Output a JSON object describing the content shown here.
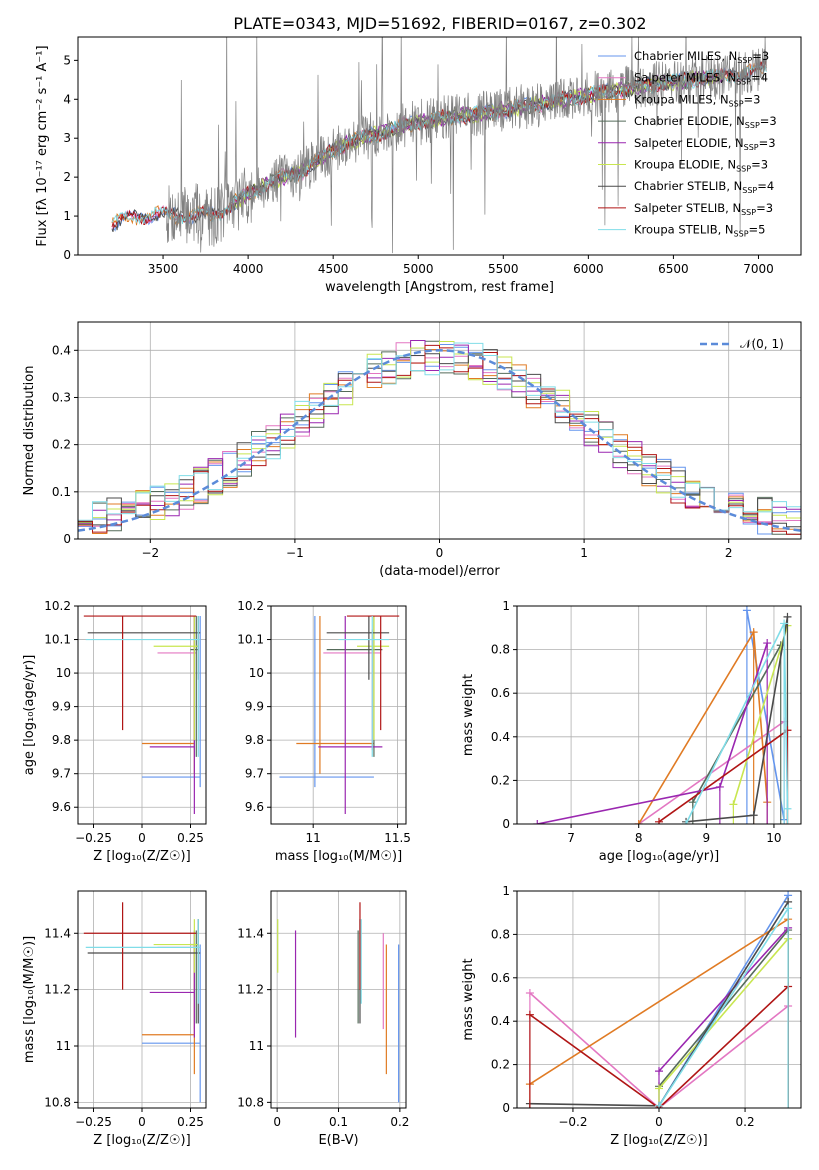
{
  "figure": {
    "title": "PLATE=0343, MJD=51692, FIBERID=0167, z=0.302"
  },
  "colors": {
    "Chabrier MILES": "#6495ed",
    "Salpeter MILES": "#e377c2",
    "Kroupa MILES": "#e07b24",
    "Chabrier ELODIE": "#556b5a",
    "Salpeter ELODIE": "#9a27b0",
    "Kroupa ELODIE": "#c8e650",
    "Chabrier STELIB": "#4a4a4a",
    "Salpeter STELIB": "#b01515",
    "Kroupa STELIB": "#80dde8",
    "data": "#808080",
    "normal": "#5b8bd9",
    "grid": "#b0b0b0"
  },
  "chart_data": [
    {
      "id": "spectrum",
      "type": "line",
      "xlabel": "wavelength [Angstrom, rest frame]",
      "ylabel": "Flux [fλ 10⁻¹⁷ erg cm⁻² s⁻¹ A⁻¹]",
      "xlim": [
        3000,
        7250
      ],
      "ylim": [
        0,
        5.6
      ],
      "xticks": [
        3500,
        4000,
        4500,
        5000,
        5500,
        6000,
        6500,
        7000
      ],
      "yticks": [
        0,
        1,
        2,
        3,
        4,
        5
      ],
      "grid": false,
      "legend_position": "top-right",
      "legend": [
        {
          "base": "Chabrier MILES",
          "sub": "SSP",
          "count": "3"
        },
        {
          "base": "Salpeter MILES",
          "sub": "SSP",
          "count": "4"
        },
        {
          "base": "Kroupa MILES",
          "sub": "SSP",
          "count": "3"
        },
        {
          "base": "Chabrier ELODIE",
          "sub": "SSP",
          "count": "3"
        },
        {
          "base": "Salpeter ELODIE",
          "sub": "SSP",
          "count": "3"
        },
        {
          "base": "Kroupa ELODIE",
          "sub": "SSP",
          "count": "3"
        },
        {
          "base": "Chabrier STELIB",
          "sub": "SSP",
          "count": "4"
        },
        {
          "base": "Salpeter STELIB",
          "sub": "SSP",
          "count": "3"
        },
        {
          "base": "Kroupa STELIB",
          "sub": "SSP",
          "count": "5"
        }
      ],
      "model_coverage": {
        "MILES": [
          3200,
          7050
        ],
        "ELODIE": [
          3900,
          6800
        ],
        "STELIB": [
          3200,
          7050
        ]
      },
      "continuum": {
        "x": [
          3200,
          3300,
          3400,
          3500,
          3600,
          3700,
          3800,
          3900,
          4000,
          4100,
          4200,
          4300,
          4400,
          4500,
          4600,
          4700,
          4800,
          4900,
          5000,
          5200,
          5400,
          5600,
          5800,
          6000,
          6200,
          6400,
          6600,
          6800,
          7000,
          7050
        ],
        "y": [
          0.8,
          0.95,
          1.0,
          1.05,
          1.0,
          1.05,
          1.0,
          1.3,
          1.55,
          1.8,
          2.0,
          2.1,
          2.4,
          2.7,
          2.9,
          3.05,
          3.15,
          3.3,
          3.4,
          3.55,
          3.65,
          3.8,
          3.95,
          4.1,
          4.25,
          4.4,
          4.5,
          4.6,
          4.75,
          4.85
        ]
      },
      "data_range": [
        3520,
        7050
      ]
    },
    {
      "id": "residuals",
      "type": "histogram",
      "xlabel": "(data-model)/error",
      "ylabel": "Normed distribution",
      "xlim": [
        -2.5,
        2.5
      ],
      "ylim": [
        0,
        0.46
      ],
      "xticks": [
        -2,
        -1,
        0,
        1,
        2
      ],
      "yticks": [
        0.0,
        0.1,
        0.2,
        0.3,
        0.4
      ],
      "grid": true,
      "legend_position": "top-right",
      "normal_label": "𝒩(0, 1)",
      "bin_width": 0.1,
      "amplitude": 0.4
    },
    {
      "id": "age-vs-Z",
      "type": "errorbar",
      "xlabel": "Z [log₁₀(Z/Z☉)]",
      "ylabel": "age  [log₁₀(age/yr)]",
      "xlim": [
        -0.33,
        0.33
      ],
      "ylim": [
        9.55,
        10.2
      ],
      "xticks": [
        -0.25,
        0.0,
        0.25
      ],
      "yticks": [
        9.6,
        9.7,
        9.8,
        9.9,
        10.0,
        10.1,
        10.2
      ],
      "grid": true
    },
    {
      "id": "age-vs-mass",
      "type": "errorbar",
      "xlabel": "mass [log₁₀(M/M☉)]",
      "ylabel": "",
      "xlim": [
        10.75,
        11.55
      ],
      "ylim": [
        9.55,
        10.2
      ],
      "xticks": [
        11.0,
        11.5
      ],
      "yticks": [
        9.6,
        9.7,
        9.8,
        9.9,
        10.0,
        10.1,
        10.2
      ],
      "grid": true
    },
    {
      "id": "weight-vs-age",
      "type": "line",
      "xlabel": "age  [log₁₀(age/yr)]",
      "ylabel": "mass weight",
      "xlim": [
        6.2,
        10.4
      ],
      "ylim": [
        0,
        1.0
      ],
      "xticks": [
        7,
        8,
        9,
        10
      ],
      "yticks": [
        0.0,
        0.2,
        0.4,
        0.6,
        0.8,
        1.0
      ],
      "grid": true
    },
    {
      "id": "mass-vs-Z",
      "type": "errorbar",
      "xlabel": "Z [log₁₀(Z/Z☉)]",
      "ylabel": "mass [log₁₀(M/M☉)]",
      "xlim": [
        -0.33,
        0.33
      ],
      "ylim": [
        10.78,
        11.55
      ],
      "xticks": [
        -0.25,
        0.0,
        0.25
      ],
      "yticks": [
        10.8,
        11.0,
        11.2,
        11.4
      ],
      "grid": true
    },
    {
      "id": "mass-vs-ebv",
      "type": "errorbar",
      "xlabel": "E(B-V)",
      "ylabel": "",
      "xlim": [
        -0.01,
        0.21
      ],
      "ylim": [
        10.78,
        11.55
      ],
      "xticks": [
        0.0,
        0.1,
        0.2
      ],
      "yticks": [
        10.8,
        11.0,
        11.2,
        11.4
      ],
      "grid": true
    },
    {
      "id": "weight-vs-Z",
      "type": "line",
      "xlabel": "Z [log₁₀(Z/Z☉)]",
      "ylabel": "mass weight",
      "xlim": [
        -0.33,
        0.33
      ],
      "ylim": [
        0,
        1.0
      ],
      "xticks": [
        -0.2,
        0.0,
        0.2
      ],
      "yticks": [
        0.0,
        0.2,
        0.4,
        0.6,
        0.8,
        1.0
      ],
      "grid": true
    }
  ],
  "fits": [
    {
      "model": "Chabrier MILES",
      "Z": 0.3,
      "Zlo": 0.0,
      "Zhi": 0.3,
      "age": 9.69,
      "ageLo": 9.66,
      "ageHi": 10.17,
      "mass": 11.01,
      "massLo": 10.8,
      "massHi": 11.36,
      "ebv": 0.198,
      "ssp_age": [
        9.6,
        10.15
      ],
      "ssp_w": [
        0.98,
        0.02
      ],
      "ssp_Z": [
        0.3,
        0.0
      ],
      "ssp_Zw": [
        0.98,
        0.01
      ]
    },
    {
      "model": "Salpeter MILES",
      "Z": 0.27,
      "Zlo": 0.08,
      "Zhi": 0.28,
      "age": 10.06,
      "ageLo": 9.77,
      "ageHi": 10.13,
      "mass": 11.35,
      "massLo": 11.06,
      "massHi": 11.4,
      "ebv": 0.173,
      "ssp_age": [
        8.0,
        10.15
      ],
      "ssp_w": [
        0.0,
        0.47
      ],
      "ssp_Z": [
        -0.3,
        0.0,
        0.3
      ],
      "ssp_Zw": [
        0.53,
        0.0,
        0.47
      ]
    },
    {
      "model": "Kroupa MILES",
      "Z": 0.27,
      "Zlo": 0.0,
      "Zhi": 0.27,
      "age": 9.79,
      "ageLo": 9.7,
      "ageHi": 10.17,
      "mass": 11.04,
      "massLo": 10.9,
      "massHi": 11.36,
      "ebv": 0.178,
      "ssp_age": [
        8.0,
        9.7,
        9.9
      ],
      "ssp_w": [
        0.0,
        0.88,
        0.1
      ],
      "ssp_Z": [
        -0.3,
        0.3
      ],
      "ssp_Zw": [
        0.11,
        0.87
      ]
    },
    {
      "model": "Chabrier ELODIE",
      "Z": 0.28,
      "Zlo": 0.25,
      "Zhi": 0.29,
      "age": 10.07,
      "ageLo": 9.75,
      "ageHi": 10.17,
      "mass": 11.36,
      "massLo": 11.08,
      "massHi": 11.41,
      "ebv": 0.132,
      "ssp_age": [
        8.8,
        10.1
      ],
      "ssp_w": [
        0.1,
        0.82
      ],
      "ssp_Z": [
        0.0,
        0.3
      ],
      "ssp_Zw": [
        0.1,
        0.82
      ]
    },
    {
      "model": "Salpeter ELODIE",
      "Z": 0.27,
      "Zlo": 0.04,
      "Zhi": 0.27,
      "age": 9.78,
      "ageLo": 9.58,
      "ageHi": 10.17,
      "mass": 11.19,
      "massLo": 11.03,
      "massHi": 11.41,
      "ebv": 0.03,
      "ssp_age": [
        6.5,
        9.2,
        9.9
      ],
      "ssp_w": [
        0.0,
        0.17,
        0.83
      ],
      "ssp_Z": [
        0.0,
        0.3
      ],
      "ssp_Zw": [
        0.17,
        0.83
      ]
    },
    {
      "model": "Kroupa ELODIE",
      "Z": 0.27,
      "Zlo": 0.06,
      "Zhi": 0.29,
      "age": 10.08,
      "ageLo": 9.8,
      "ageHi": 10.17,
      "mass": 11.36,
      "massLo": 11.26,
      "massHi": 11.45,
      "ebv": 0.001,
      "ssp_age": [
        9.4,
        10.2
      ],
      "ssp_w": [
        0.09,
        0.91
      ],
      "ssp_Z": [
        0.0,
        0.3
      ],
      "ssp_Zw": [
        0.09,
        0.78
      ]
    },
    {
      "model": "Chabrier STELIB",
      "Z": 0.29,
      "Zlo": -0.28,
      "Zhi": 0.3,
      "age": 10.12,
      "ageLo": 9.98,
      "ageHi": 10.17,
      "mass": 11.33,
      "massLo": 11.08,
      "massHi": 11.45,
      "ebv": 0.135,
      "ssp_age": [
        8.7,
        9.7,
        10.2
      ],
      "ssp_w": [
        0.01,
        0.04,
        0.95
      ],
      "ssp_Z": [
        -0.3,
        0.0,
        0.3
      ],
      "ssp_Zw": [
        0.02,
        0.01,
        0.95
      ]
    },
    {
      "model": "Salpeter STELIB",
      "Z": -0.1,
      "Zlo": -0.3,
      "Zhi": 0.28,
      "age": 10.17,
      "ageLo": 9.83,
      "ageHi": 10.17,
      "mass": 11.4,
      "massLo": 11.2,
      "massHi": 11.51,
      "ebv": 0.135,
      "ssp_age": [
        8.3,
        10.2
      ],
      "ssp_w": [
        0.01,
        0.43
      ],
      "ssp_Z": [
        -0.3,
        0.0,
        0.3
      ],
      "ssp_Zw": [
        0.43,
        0.0,
        0.56
      ]
    },
    {
      "model": "Kroupa STELIB",
      "Z": 0.29,
      "Zlo": -0.29,
      "Zhi": 0.3,
      "age": 10.1,
      "ageLo": 9.75,
      "ageHi": 10.17,
      "mass": 11.35,
      "massLo": 11.15,
      "massHi": 11.45,
      "ebv": 0.137,
      "ssp_age": [
        8.7,
        10.15,
        10.2
      ],
      "ssp_w": [
        0.0,
        0.92,
        0.07
      ],
      "ssp_Z": [
        0.0,
        0.3
      ],
      "ssp_Zw": [
        0.01,
        0.92
      ]
    }
  ]
}
